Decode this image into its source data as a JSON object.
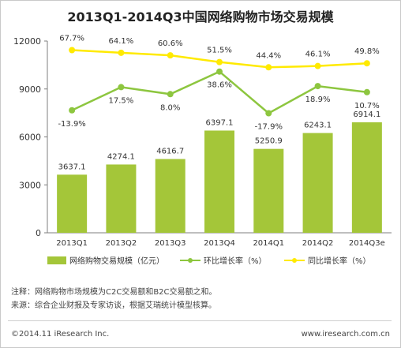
{
  "title": "2013Q1-2014Q3中国网络购物市场交易规模",
  "colors": {
    "bar": "#a4c639",
    "mom": "#8dc63f",
    "yoy": "#ffea00",
    "axis": "#7f7f7f",
    "text": "#333333"
  },
  "chart_data": {
    "type": "bar",
    "categories": [
      "2013Q1",
      "2013Q2",
      "2013Q3",
      "2013Q4",
      "2014Q1",
      "2014Q2",
      "2014Q3e"
    ],
    "ylim": [
      0,
      12000
    ],
    "yticks": [
      "0",
      "3000",
      "6000",
      "9000",
      "12000"
    ],
    "bar_labels": [
      "3637.1",
      "4274.1",
      "4616.7",
      "6397.1",
      "5250.9",
      "6243.1",
      "6914.1"
    ],
    "series": [
      {
        "name": "网络购物交易规模（亿元）",
        "type": "bar",
        "values": [
          3637.1,
          4274.1,
          4616.7,
          6397.1,
          5250.9,
          6243.1,
          6914.1
        ]
      },
      {
        "name": "环比增长率（%）",
        "type": "line",
        "values": [
          -13.9,
          17.5,
          8.0,
          38.6,
          -17.9,
          18.9,
          10.7
        ],
        "labels": [
          "-13.9%",
          "17.5%",
          "8.0%",
          "38.6%",
          "-17.9%",
          "18.9%",
          "10.7%"
        ]
      },
      {
        "name": "同比增长率（%）",
        "type": "line",
        "values": [
          67.7,
          64.1,
          60.6,
          51.5,
          44.4,
          46.1,
          49.8
        ],
        "labels": [
          "67.7%",
          "64.1%",
          "60.6%",
          "51.5%",
          "44.4%",
          "46.1%",
          "49.8%"
        ]
      }
    ],
    "legend": "bottom",
    "grid": false
  },
  "notes": [
    "注释：网络购物市场规模为C2C交易额和B2C交易额之和。",
    "来源：综合企业财报及专家访谈，根据艾瑞统计模型核算。"
  ],
  "footer": {
    "copyright": "©2014.11 iResearch Inc.",
    "website": "www.iresearch.com.cn"
  }
}
